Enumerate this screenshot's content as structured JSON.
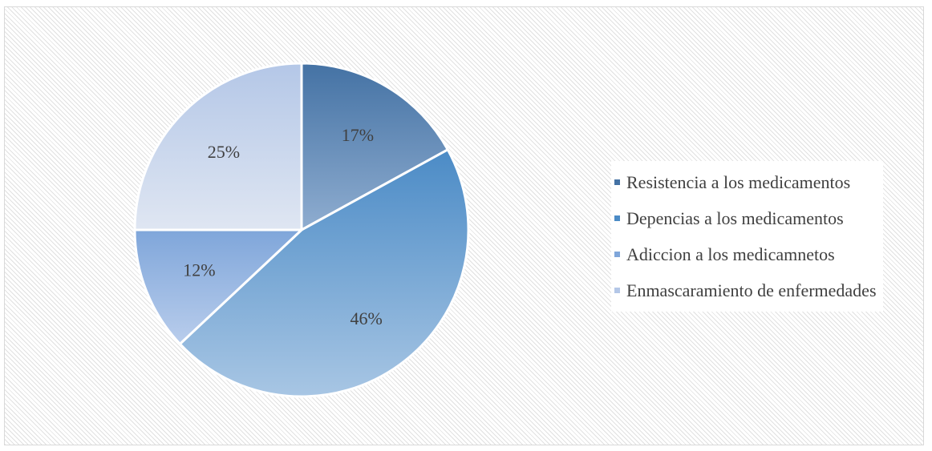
{
  "chart_data": {
    "type": "pie",
    "slices": [
      {
        "label": "Resistencia a los medicamentos",
        "value": 17,
        "display": "17%",
        "color_top": "#4472a4",
        "color_bottom": "#8fadd0"
      },
      {
        "label": "Depencias a los medicamentos",
        "value": 46,
        "display": "46%",
        "color_top": "#4b8bc6",
        "color_bottom": "#a8c6e4"
      },
      {
        "label": "Adiccion a los medicamnetos",
        "value": 12,
        "display": "12%",
        "color_top": "#7fa6da",
        "color_bottom": "#b9cdec"
      },
      {
        "label": "Enmascaramiento de enfermedades",
        "value": 25,
        "display": "25%",
        "color_top": "#b4c7e7",
        "color_bottom": "#dfe6f2"
      }
    ],
    "start_angle": "12 o'clock",
    "direction": "clockwise",
    "legend_position": "right"
  }
}
